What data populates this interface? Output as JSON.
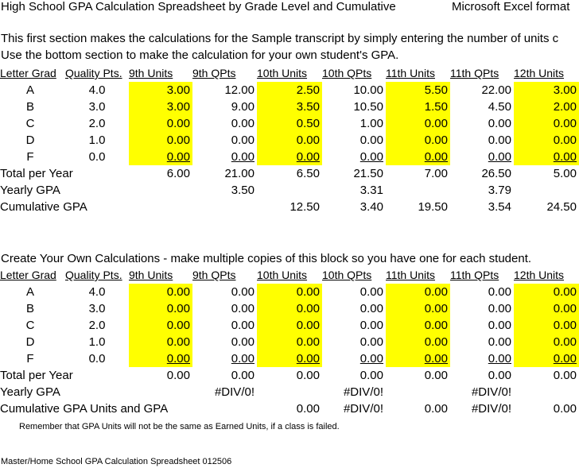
{
  "title": "High School GPA Calculation Spreadsheet by Grade Level and Cumulative",
  "format": "Microsoft Excel format",
  "intro1": "This first section makes the calculations for the Sample transcript by simply entering the number of units c",
  "intro2": "Use the bottom section to make the calculation for your own student's GPA.",
  "headers": [
    "Letter Grad",
    "Quality Pts.",
    "9th Units",
    "9th QPts",
    "10th Units",
    "10th QPts",
    "11th Units",
    "11th QPts",
    "12th Units"
  ],
  "sample": {
    "grades": [
      {
        "letter": "A",
        "qp": "4.0",
        "u9": "3.00",
        "q9": "12.00",
        "u10": "2.50",
        "q10": "10.00",
        "u11": "5.50",
        "q11": "22.00",
        "u12": "3.00"
      },
      {
        "letter": "B",
        "qp": "3.0",
        "u9": "3.00",
        "q9": "9.00",
        "u10": "3.50",
        "q10": "10.50",
        "u11": "1.50",
        "q11": "4.50",
        "u12": "2.00"
      },
      {
        "letter": "C",
        "qp": "2.0",
        "u9": "0.00",
        "q9": "0.00",
        "u10": "0.50",
        "q10": "1.00",
        "u11": "0.00",
        "q11": "0.00",
        "u12": "0.00"
      },
      {
        "letter": "D",
        "qp": "1.0",
        "u9": "0.00",
        "q9": "0.00",
        "u10": "0.00",
        "q10": "0.00",
        "u11": "0.00",
        "q11": "0.00",
        "u12": "0.00"
      },
      {
        "letter": "F",
        "qp": "0.0",
        "u9": "0.00",
        "q9": "0.00",
        "u10": "0.00",
        "q10": "0.00",
        "u11": "0.00",
        "q11": "0.00",
        "u12": "0.00"
      }
    ],
    "total": {
      "label": "Total per Year",
      "u9": "6.00",
      "q9": "21.00",
      "u10": "6.50",
      "q10": "21.50",
      "u11": "7.00",
      "q11": "26.50",
      "u12": "5.00"
    },
    "yearly": {
      "label": "Yearly GPA",
      "g9": "3.50",
      "g10": "3.31",
      "g11": "3.79"
    },
    "cumulative": {
      "label": "Cumulative GPA",
      "u10": "12.50",
      "g10": "3.40",
      "u11": "19.50",
      "g11": "3.54",
      "u12": "24.50"
    }
  },
  "own_heading": "Create Your Own Calculations -  make multiple copies of this block so you have one for each student.",
  "own": {
    "grades": [
      {
        "letter": "A",
        "qp": "4.0",
        "u9": "0.00",
        "q9": "0.00",
        "u10": "0.00",
        "q10": "0.00",
        "u11": "0.00",
        "q11": "0.00",
        "u12": "0.00"
      },
      {
        "letter": "B",
        "qp": "3.0",
        "u9": "0.00",
        "q9": "0.00",
        "u10": "0.00",
        "q10": "0.00",
        "u11": "0.00",
        "q11": "0.00",
        "u12": "0.00"
      },
      {
        "letter": "C",
        "qp": "2.0",
        "u9": "0.00",
        "q9": "0.00",
        "u10": "0.00",
        "q10": "0.00",
        "u11": "0.00",
        "q11": "0.00",
        "u12": "0.00"
      },
      {
        "letter": "D",
        "qp": "1.0",
        "u9": "0.00",
        "q9": "0.00",
        "u10": "0.00",
        "q10": "0.00",
        "u11": "0.00",
        "q11": "0.00",
        "u12": "0.00"
      },
      {
        "letter": "F",
        "qp": "0.0",
        "u9": "0.00",
        "q9": "0.00",
        "u10": "0.00",
        "q10": "0.00",
        "u11": "0.00",
        "q11": "0.00",
        "u12": "0.00"
      }
    ],
    "total": {
      "label": "Total per Year",
      "u9": "0.00",
      "q9": "0.00",
      "u10": "0.00",
      "q10": "0.00",
      "u11": "0.00",
      "q11": "0.00",
      "u12": "0.00"
    },
    "yearly": {
      "label": "Yearly GPA",
      "g9": "#DIV/0!",
      "g10": "#DIV/0!",
      "g11": "#DIV/0!"
    },
    "cumulative": {
      "label": "Cumulative GPA Units and GPA",
      "u10": "0.00",
      "g10": "#DIV/0!",
      "u11": "0.00",
      "g11": "#DIV/0!",
      "u12": "0.00"
    }
  },
  "note": "Remember that GPA Units will not be the same as Earned Units, if a class is failed.",
  "footer": "Master/Home School GPA Calculation Spreadsheet 012506",
  "colors": {
    "highlight": "#ffff00"
  }
}
